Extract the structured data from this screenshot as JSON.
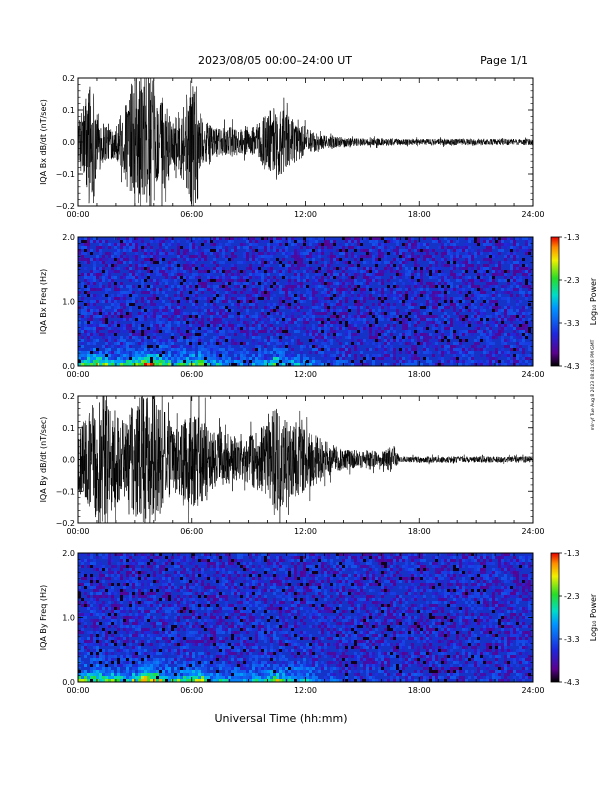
{
  "header": {
    "date_range": "2023/08/05  00:00–24:00 UT",
    "page": "Page 1/1"
  },
  "side_note": "mlr-yf Tue Aug 8 2023 08:41:08 PM GMT",
  "xlabel": "Universal Time (hh:mm)",
  "x_ticks": [
    "00:00",
    "06:00",
    "12:00",
    "18:00",
    "24:00"
  ],
  "colorbar": {
    "label": "Log₁₀ Power",
    "ticks": [
      "-1.3",
      "-2.3",
      "-3.3",
      "-4.3"
    ],
    "range": [
      -4.3,
      -1.3
    ]
  },
  "colors": {
    "trace": "#000000",
    "spectrogram_background": "#1633c8"
  },
  "chart_data": [
    {
      "type": "line",
      "ylabel": "IQA Bx dB/dt (nT/sec)",
      "xlim": [
        0,
        24
      ],
      "ylim": [
        -0.2,
        0.2
      ],
      "y_ticks": [
        "0.2",
        "0.1",
        "0.0",
        "−0.1",
        "−0.2"
      ],
      "y_tick_values": [
        0.2,
        0.1,
        0.0,
        -0.1,
        -0.2
      ],
      "envelope_hours": [
        0,
        0.25,
        0.5,
        0.75,
        1,
        1.5,
        2,
        2.5,
        3,
        3.5,
        4,
        4.25,
        4.5,
        5,
        5.5,
        6,
        6.25,
        6.5,
        7,
        7.5,
        8,
        8.5,
        9,
        9.5,
        10,
        10.5,
        11,
        11.5,
        12,
        12.5,
        13,
        14,
        15,
        16,
        17,
        18,
        19,
        20,
        21,
        22,
        23,
        24
      ],
      "envelope_amplitude": [
        0.05,
        0.12,
        0.18,
        0.22,
        0.1,
        0.06,
        0.05,
        0.12,
        0.22,
        0.22,
        0.2,
        0.1,
        0.16,
        0.06,
        0.12,
        0.2,
        0.22,
        0.08,
        0.05,
        0.04,
        0.05,
        0.04,
        0.04,
        0.06,
        0.1,
        0.12,
        0.09,
        0.06,
        0.05,
        0.03,
        0.02,
        0.015,
        0.012,
        0.012,
        0.01,
        0.01,
        0.01,
        0.01,
        0.01,
        0.01,
        0.01,
        0.01
      ]
    },
    {
      "type": "heatmap",
      "ylabel": "IQA Bx Freq (Hz)",
      "xlim": [
        0,
        24
      ],
      "ylim": [
        0,
        2.0
      ],
      "y_ticks": [
        "2.0",
        "1.0",
        "0.0"
      ],
      "y_tick_values": [
        2.0,
        1.0,
        0.0
      ],
      "activity_hours": [
        0,
        1,
        2,
        3,
        3.75,
        4,
        5,
        6,
        6.5,
        7,
        8,
        9,
        10,
        10.5,
        11,
        11.5,
        12,
        12.5,
        13,
        14,
        16,
        20,
        24
      ],
      "activity_level": [
        0.45,
        0.7,
        0.4,
        0.5,
        0.9,
        0.8,
        0.4,
        0.55,
        0.7,
        0.35,
        0.3,
        0.25,
        0.35,
        0.65,
        0.4,
        0.35,
        0.25,
        0.2,
        0.15,
        0.1,
        0.05,
        0.03,
        0.02
      ]
    },
    {
      "type": "line",
      "ylabel": "IQA By dB/dt (nT/sec)",
      "xlim": [
        0,
        24
      ],
      "ylim": [
        -0.2,
        0.2
      ],
      "y_ticks": [
        "0.2",
        "0.1",
        "0.0",
        "−0.1",
        "−0.2"
      ],
      "y_tick_values": [
        0.2,
        0.1,
        0.0,
        -0.1,
        -0.2
      ],
      "envelope_hours": [
        0,
        0.5,
        1,
        1.5,
        2,
        2.5,
        3,
        3.5,
        4,
        4.25,
        4.5,
        5,
        5.5,
        6,
        6.5,
        7,
        7.5,
        8,
        8.5,
        9,
        9.5,
        10,
        10.5,
        11,
        11.5,
        12,
        12.5,
        13,
        14,
        15,
        16,
        16.5,
        17,
        18,
        19,
        20,
        21,
        22,
        23,
        24
      ],
      "envelope_amplitude": [
        0.1,
        0.14,
        0.22,
        0.22,
        0.15,
        0.12,
        0.2,
        0.22,
        0.22,
        0.18,
        0.16,
        0.1,
        0.12,
        0.16,
        0.14,
        0.1,
        0.08,
        0.09,
        0.06,
        0.08,
        0.1,
        0.12,
        0.18,
        0.12,
        0.12,
        0.1,
        0.08,
        0.06,
        0.03,
        0.03,
        0.025,
        0.04,
        0.01,
        0.01,
        0.01,
        0.01,
        0.01,
        0.01,
        0.01,
        0.01
      ]
    },
    {
      "type": "heatmap",
      "ylabel": "IQA By Freq (Hz)",
      "xlim": [
        0,
        24
      ],
      "ylim": [
        0,
        2.0
      ],
      "y_ticks": [
        "2.0",
        "1.0",
        "0.0"
      ],
      "y_tick_values": [
        2.0,
        1.0,
        0.0
      ],
      "activity_hours": [
        0,
        1,
        2,
        3,
        3.75,
        4,
        5,
        6,
        6.5,
        7,
        8,
        9,
        10,
        10.5,
        11,
        11.5,
        12,
        12.5,
        13,
        14,
        16,
        20,
        24
      ],
      "activity_level": [
        0.55,
        0.75,
        0.5,
        0.55,
        0.9,
        0.85,
        0.45,
        0.6,
        0.75,
        0.4,
        0.35,
        0.3,
        0.4,
        0.7,
        0.45,
        0.45,
        0.4,
        0.3,
        0.2,
        0.1,
        0.05,
        0.03,
        0.02
      ]
    }
  ]
}
